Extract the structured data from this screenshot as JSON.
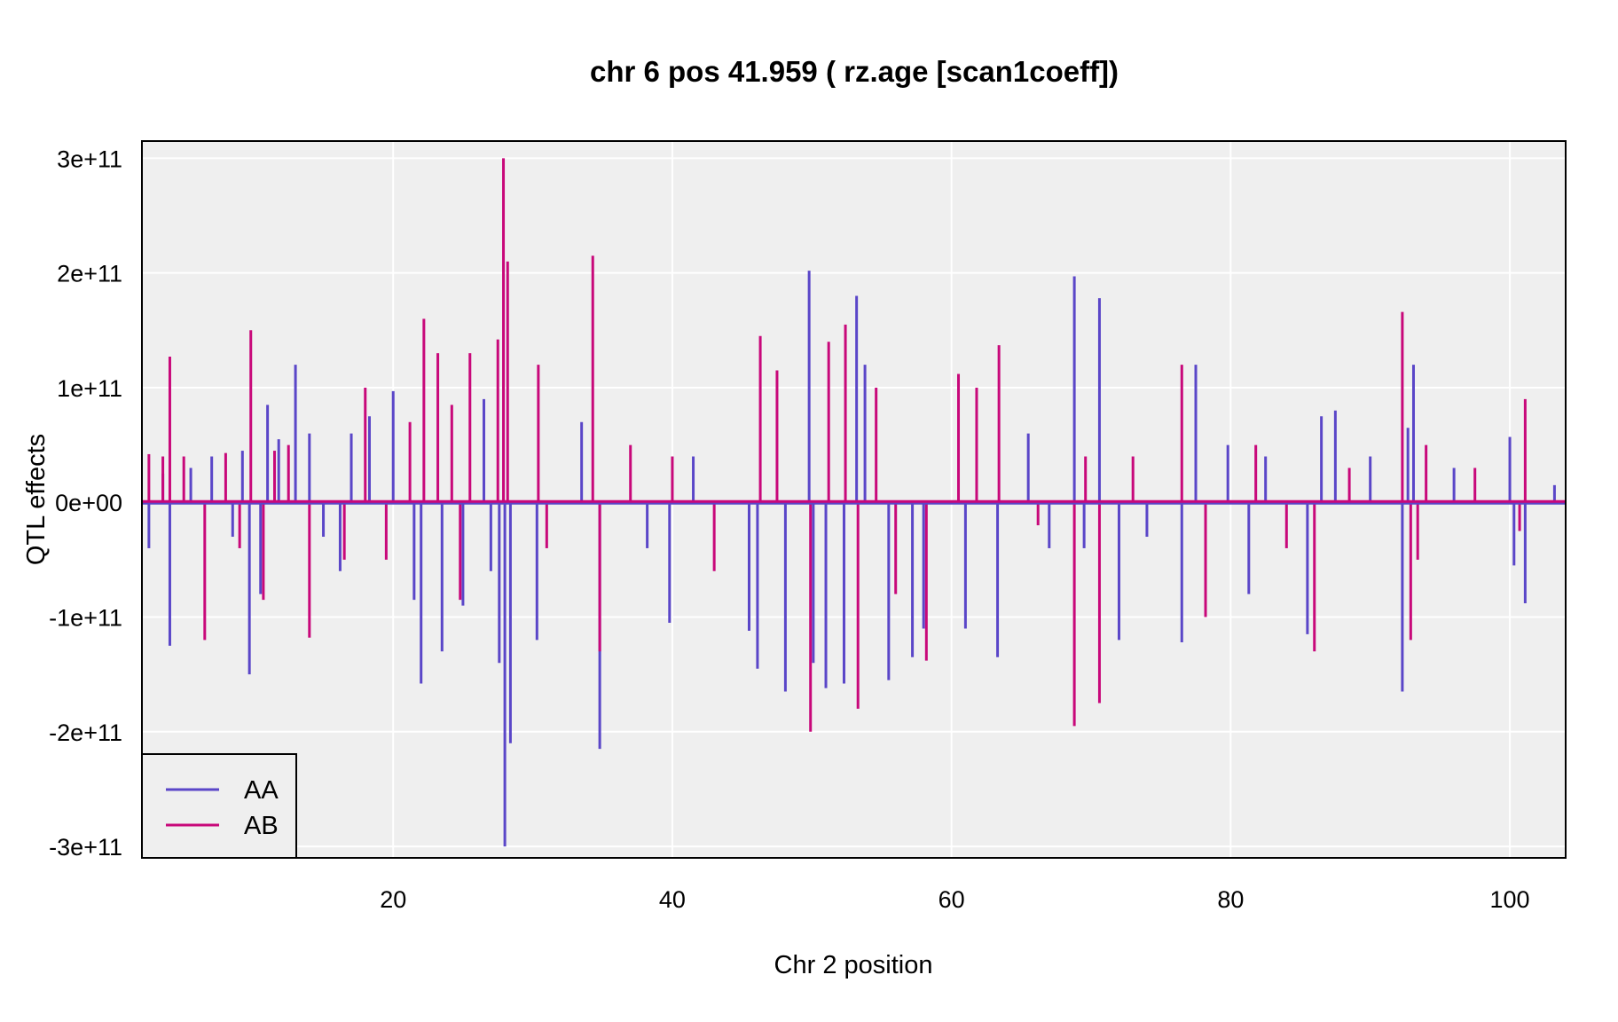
{
  "chart_data": {
    "type": "line",
    "title": "chr 6 pos 41.959 ( rz.age  [scan1coeff])",
    "xlabel": "Chr 2 position",
    "ylabel": "QTL effects",
    "xlim": [
      2,
      104
    ],
    "ylim": [
      -310000000000.0,
      315000000000.0
    ],
    "x_ticks": [
      20,
      40,
      60,
      80,
      100
    ],
    "x_tick_labels": [
      "20",
      "40",
      "60",
      "80",
      "100"
    ],
    "y_ticks": [
      -300000000000.0,
      -200000000000.0,
      -100000000000.0,
      0,
      100000000000.0,
      200000000000.0,
      300000000000.0
    ],
    "y_tick_labels": [
      "-3e+11",
      "-2e+11",
      "-1e+11",
      "0e+00",
      "1e+11",
      "2e+11",
      "3e+11"
    ],
    "grid": true,
    "background": "#efefef",
    "legend_position": "bottom-left",
    "series": [
      {
        "name": "AA",
        "color": "#5a46c8",
        "x": [
          2.5,
          3.5,
          4.0,
          5.5,
          7.0,
          8.5,
          9.2,
          9.7,
          10.5,
          11.0,
          11.8,
          13.0,
          14.0,
          15.0,
          16.2,
          17.0,
          18.3,
          20.0,
          21.5,
          22.0,
          23.5,
          25.0,
          26.5,
          27.0,
          27.6,
          28.0,
          28.4,
          30.3,
          33.5,
          34.8,
          38.2,
          39.8,
          41.5,
          45.5,
          46.1,
          48.1,
          49.8,
          50.1,
          51.0,
          52.3,
          53.2,
          53.8,
          55.5,
          57.2,
          58.0,
          61.0,
          63.3,
          65.5,
          67.0,
          68.8,
          69.5,
          70.6,
          72.0,
          74.0,
          76.5,
          77.5,
          79.8,
          81.3,
          82.5,
          85.5,
          86.5,
          87.5,
          90.0,
          92.3,
          92.7,
          93.1,
          96.0,
          100.0,
          100.3,
          101.1,
          103.2
        ],
        "y": [
          -40000000000.0,
          25000000000.0,
          -125000000000.0,
          30000000000.0,
          40000000000.0,
          -30000000000.0,
          45000000000.0,
          -150000000000.0,
          -80000000000.0,
          85000000000.0,
          55000000000.0,
          120000000000.0,
          60000000000.0,
          -30000000000.0,
          -60000000000.0,
          60000000000.0,
          75000000000.0,
          97000000000.0,
          -85000000000.0,
          -158000000000.0,
          -130000000000.0,
          -90000000000.0,
          90000000000.0,
          -60000000000.0,
          -140000000000.0,
          -300000000000.0,
          -210000000000.0,
          -120000000000.0,
          70000000000.0,
          -215000000000.0,
          -40000000000.0,
          -105000000000.0,
          40000000000.0,
          -112000000000.0,
          -145000000000.0,
          -165000000000.0,
          202000000000.0,
          -140000000000.0,
          -162000000000.0,
          -158000000000.0,
          180000000000.0,
          120000000000.0,
          -155000000000.0,
          -135000000000.0,
          -110000000000.0,
          -110000000000.0,
          -135000000000.0,
          60000000000.0,
          -40000000000.0,
          197000000000.0,
          -40000000000.0,
          178000000000.0,
          -120000000000.0,
          -30000000000.0,
          -122000000000.0,
          120000000000.0,
          50000000000.0,
          -80000000000.0,
          40000000000.0,
          -115000000000.0,
          75000000000.0,
          80000000000.0,
          40000000000.0,
          -165000000000.0,
          65000000000.0,
          120000000000.0,
          30000000000.0,
          57000000000.0,
          -55000000000.0,
          -88000000000.0,
          15000000000.0
        ]
      },
      {
        "name": "AB",
        "color": "#c8087a",
        "x": [
          2.5,
          3.5,
          4.0,
          5.0,
          6.5,
          8.0,
          9.0,
          9.8,
          10.7,
          11.5,
          12.5,
          14.0,
          16.5,
          18.0,
          19.5,
          21.2,
          22.2,
          23.2,
          24.2,
          24.8,
          25.5,
          27.5,
          27.9,
          28.2,
          30.4,
          31.0,
          34.3,
          34.8,
          37.0,
          40.0,
          43.0,
          46.3,
          47.5,
          49.9,
          51.2,
          52.4,
          53.3,
          54.6,
          56.0,
          58.2,
          60.5,
          61.8,
          63.4,
          66.2,
          68.8,
          69.6,
          70.6,
          73.0,
          76.5,
          78.2,
          81.8,
          84.0,
          86.0,
          88.5,
          92.3,
          92.9,
          93.4,
          94.0,
          97.5,
          100.7,
          101.1
        ],
        "y": [
          42000000000.0,
          40000000000.0,
          127000000000.0,
          40000000000.0,
          -120000000000.0,
          43000000000.0,
          -40000000000.0,
          150000000000.0,
          -85000000000.0,
          45000000000.0,
          50000000000.0,
          -118000000000.0,
          -50000000000.0,
          100000000000.0,
          -50000000000.0,
          70000000000.0,
          160000000000.0,
          130000000000.0,
          85000000000.0,
          -85000000000.0,
          130000000000.0,
          142000000000.0,
          300000000000.0,
          210000000000.0,
          120000000000.0,
          -40000000000.0,
          215000000000.0,
          -130000000000.0,
          50000000000.0,
          40000000000.0,
          -60000000000.0,
          145000000000.0,
          115000000000.0,
          -200000000000.0,
          140000000000.0,
          155000000000.0,
          -180000000000.0,
          100000000000.0,
          -80000000000.0,
          -138000000000.0,
          112000000000.0,
          100000000000.0,
          137000000000.0,
          -20000000000.0,
          -195000000000.0,
          40000000000.0,
          -175000000000.0,
          40000000000.0,
          120000000000.0,
          -100000000000.0,
          50000000000.0,
          -40000000000.0,
          -130000000000.0,
          30000000000.0,
          166000000000.0,
          -120000000000.0,
          -50000000000.0,
          50000000000.0,
          30000000000.0,
          -25000000000.0,
          90000000000.0
        ]
      }
    ]
  }
}
